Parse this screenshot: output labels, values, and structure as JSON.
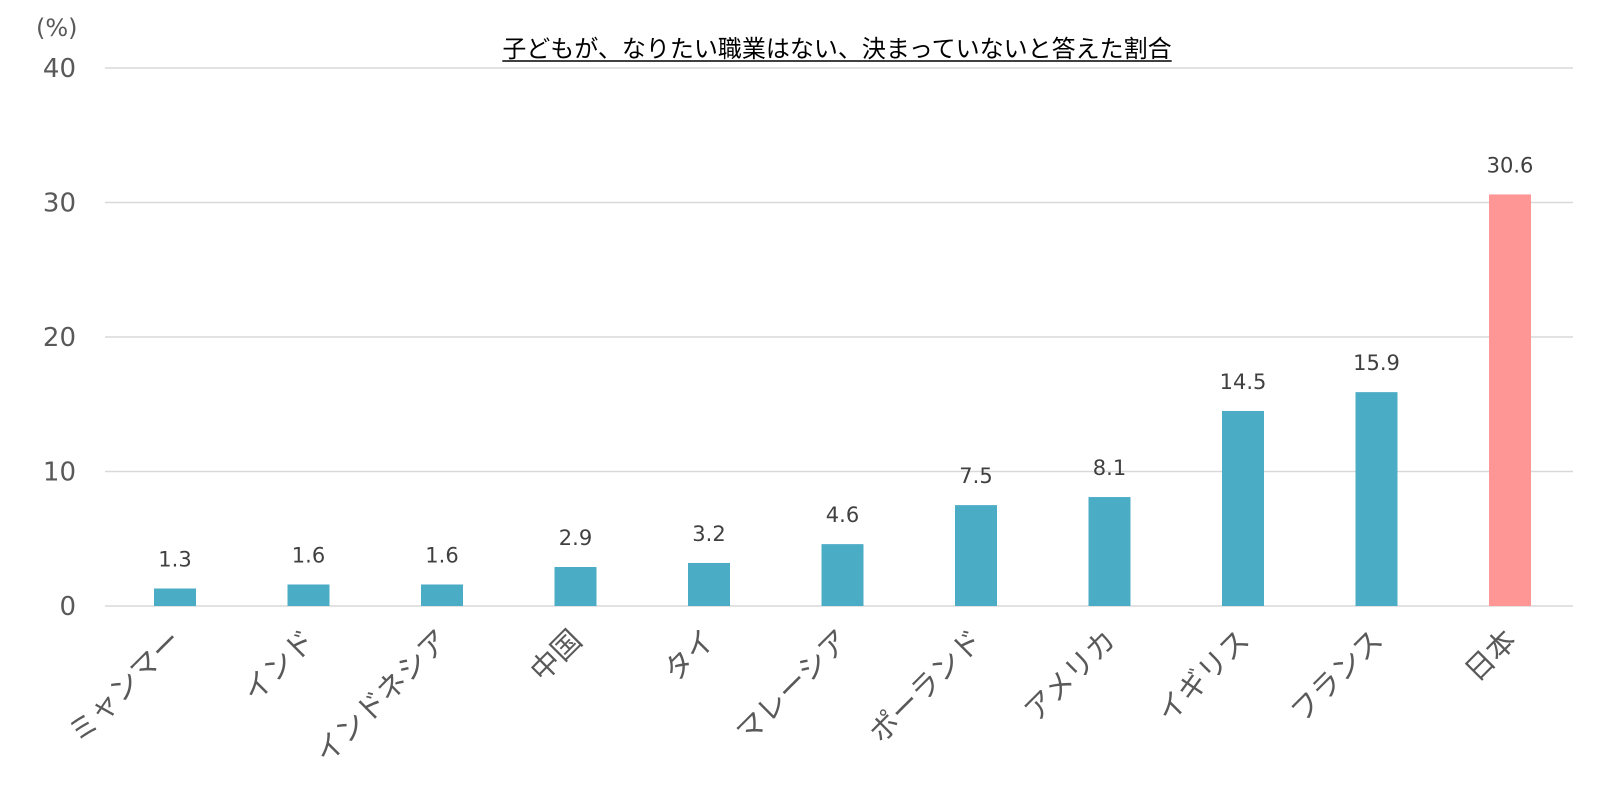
{
  "chart_data": {
    "type": "bar",
    "title": "子どもが、なりたい職業はない、決まっていないと答えた割合",
    "unit": "(%)",
    "ylim": [
      0,
      40
    ],
    "yticks": [
      0,
      10,
      20,
      30,
      40
    ],
    "grid": true,
    "categories": [
      "ミャンマー",
      "インド",
      "インドネシア",
      "中国",
      "タイ",
      "マレーシア",
      "ポーランド",
      "アメリカ",
      "イギリス",
      "フランス",
      "日本"
    ],
    "values": [
      1.3,
      1.6,
      1.6,
      2.9,
      3.2,
      4.6,
      7.5,
      8.1,
      14.5,
      15.9,
      30.6
    ],
    "value_labels": [
      "1.3",
      "1.6",
      "1.6",
      "2.9",
      "3.2",
      "4.6",
      "7.5",
      "8.1",
      "14.5",
      "15.9",
      "30.6"
    ],
    "colors": {
      "default": "#4bacc6",
      "highlight": "#ff9696",
      "highlight_category": "日本",
      "grid": "#d9d9d9"
    }
  }
}
